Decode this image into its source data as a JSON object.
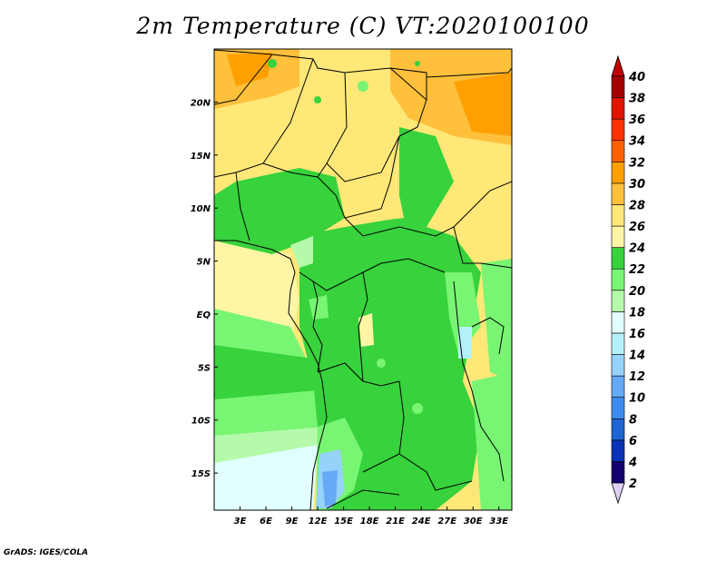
{
  "title": "2m Temperature (C) VT:2020100100",
  "credit": "GrADS: IGES/COLA",
  "chart_data": {
    "type": "heatmap",
    "variable": "2m Temperature (C)",
    "valid_time": "2020100100",
    "lon_range": [
      0,
      34.5
    ],
    "lat_range": [
      -18.5,
      25
    ],
    "x_ticks": [
      "3E",
      "6E",
      "9E",
      "12E",
      "15E",
      "18E",
      "21E",
      "24E",
      "27E",
      "30E",
      "33E"
    ],
    "x_tick_values": [
      3,
      6,
      9,
      12,
      15,
      18,
      21,
      24,
      27,
      30,
      33
    ],
    "y_ticks": [
      "20N",
      "15N",
      "10N",
      "5N",
      "EQ",
      "5S",
      "10S",
      "15S"
    ],
    "y_tick_values": [
      20,
      15,
      10,
      5,
      0,
      -5,
      -10,
      -15
    ],
    "colorbar": {
      "levels": [
        "2",
        "4",
        "6",
        "8",
        "10",
        "12",
        "14",
        "16",
        "18",
        "20",
        "22",
        "24",
        "26",
        "28",
        "30",
        "32",
        "34",
        "36",
        "38",
        "40"
      ],
      "colors": [
        "#e0d0f4",
        "#14006e",
        "#0a32b4",
        "#1e64d2",
        "#3c8cf0",
        "#64aaf5",
        "#96d2fa",
        "#b4f0fa",
        "#e0fffe",
        "#b4faaa",
        "#78f573",
        "#37d23c",
        "#fff5a5",
        "#ffe878",
        "#ffc03c",
        "#ffa000",
        "#ff6000",
        "#ff3200",
        "#e11400",
        "#a50000",
        "#c00000"
      ]
    }
  }
}
